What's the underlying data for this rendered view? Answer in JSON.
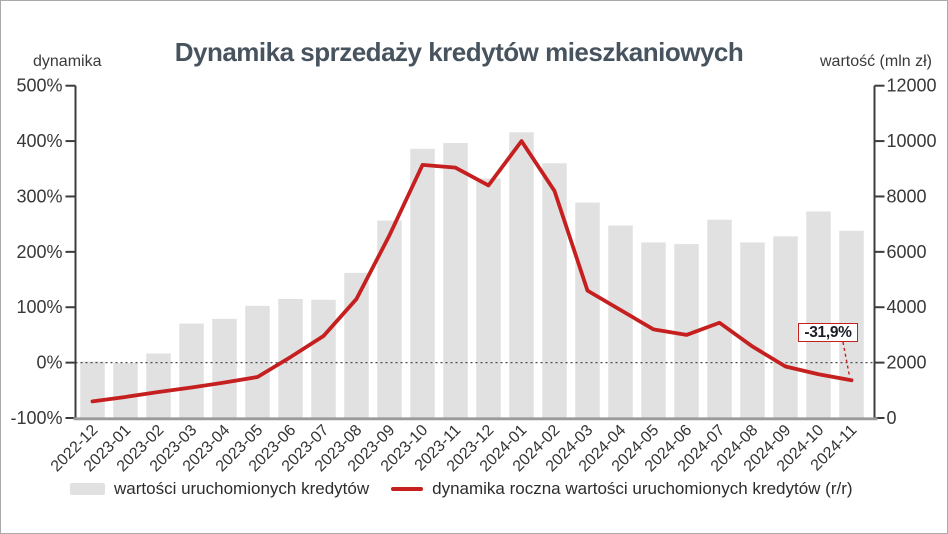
{
  "title": "Dynamika sprzedaży kredytów mieszkaniowych",
  "left_axis": {
    "label": "dynamika",
    "tick_labels": [
      "500%",
      "400%",
      "300%",
      "200%",
      "100%",
      "0%",
      "-100%"
    ],
    "min": -100,
    "max": 500
  },
  "right_axis": {
    "label": "wartość (mln zł)",
    "tick_labels": [
      "12000",
      "10000",
      "8000",
      "6000",
      "4000",
      "2000",
      "0"
    ],
    "min": 0,
    "max": 12000
  },
  "annotation": {
    "text": "-31,9%"
  },
  "legend": {
    "bar_label": "wartości uruchomionych kredytów",
    "line_label": "dynamika roczna wartości uruchomionych kredytów (r/r)"
  },
  "colors": {
    "bar": "#e1e1e1",
    "line": "#c5201f",
    "title": "#47535e",
    "text": "#383838",
    "axis": "#3c3c3c",
    "baseline": "#9a9a9a",
    "dashed": "#4d4d4d"
  },
  "chart_data": {
    "type": "combo",
    "categories": [
      "2022-12",
      "2023-01",
      "2023-02",
      "2023-03",
      "2023-04",
      "2023-05",
      "2023-06",
      "2023-07",
      "2023-08",
      "2023-09",
      "2023-10",
      "2023-11",
      "2023-12",
      "2024-01",
      "2024-02",
      "2024-03",
      "2024-04",
      "2024-05",
      "2024-06",
      "2024-07",
      "2024-08",
      "2024-09",
      "2024-10",
      "2024-11"
    ],
    "series": [
      {
        "name": "wartości uruchomionych kredytów",
        "type": "bar",
        "axis": "right",
        "values": [
          2040,
          1980,
          2330,
          3410,
          3580,
          4050,
          4300,
          4270,
          5240,
          7130,
          9720,
          9930,
          8650,
          10320,
          9200,
          7780,
          6950,
          6340,
          6280,
          7160,
          6340,
          6560,
          7460,
          6760
        ]
      },
      {
        "name": "dynamika roczna wartości uruchomionych kredytów (r/r)",
        "type": "line",
        "axis": "left",
        "values": [
          -70,
          -62,
          -53,
          -45,
          -36,
          -26,
          10,
          48,
          115,
          230,
          357,
          352,
          320,
          400,
          310,
          130,
          95,
          60,
          50,
          72,
          29,
          -7,
          -21,
          -31.9
        ]
      }
    ],
    "left_ylim": [
      -100,
      500
    ],
    "right_ylim": [
      0,
      12000
    ],
    "zero_line": true,
    "legend_position": "bottom"
  }
}
